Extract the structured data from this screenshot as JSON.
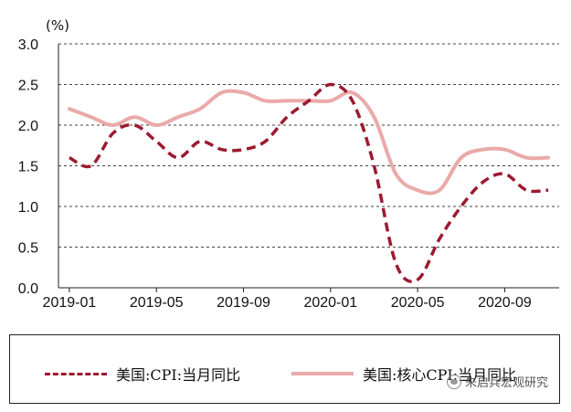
{
  "chart_data": {
    "type": "line",
    "unit_label": "(%)",
    "x": [
      "2019-01",
      "2019-02",
      "2019-03",
      "2019-04",
      "2019-05",
      "2019-06",
      "2019-07",
      "2019-08",
      "2019-09",
      "2019-10",
      "2019-11",
      "2019-12",
      "2020-01",
      "2020-02",
      "2020-03",
      "2020-04",
      "2020-05",
      "2020-06",
      "2020-07",
      "2020-08",
      "2020-09",
      "2020-10",
      "2020-11"
    ],
    "x_tick_labels": [
      "2019-01",
      "2019-05",
      "2019-09",
      "2020-01",
      "2020-05",
      "2020-09"
    ],
    "y_ticks": [
      "0.0",
      "0.5",
      "1.0",
      "1.5",
      "2.0",
      "2.5",
      "3.0"
    ],
    "ylim": [
      0,
      3.0
    ],
    "grid": "horizontal dashed",
    "legend_position": "bottom",
    "series": [
      {
        "name": "美国:CPI:当月同比",
        "style": "dashed",
        "color": "#9b1b30",
        "values": [
          1.6,
          1.5,
          1.9,
          2.0,
          1.8,
          1.6,
          1.8,
          1.7,
          1.7,
          1.8,
          2.1,
          2.3,
          2.5,
          2.3,
          1.5,
          0.3,
          0.1,
          0.6,
          1.0,
          1.3,
          1.4,
          1.2,
          1.2
        ]
      },
      {
        "name": "美国:核心CPI:当月同比",
        "style": "solid",
        "color": "#eaaaa9",
        "values": [
          2.2,
          2.1,
          2.0,
          2.1,
          2.0,
          2.1,
          2.2,
          2.4,
          2.4,
          2.3,
          2.3,
          2.3,
          2.3,
          2.4,
          2.1,
          1.4,
          1.2,
          1.2,
          1.6,
          1.7,
          1.7,
          1.6,
          1.6
        ]
      }
    ]
  },
  "watermark": "朱启兵宏观研究"
}
